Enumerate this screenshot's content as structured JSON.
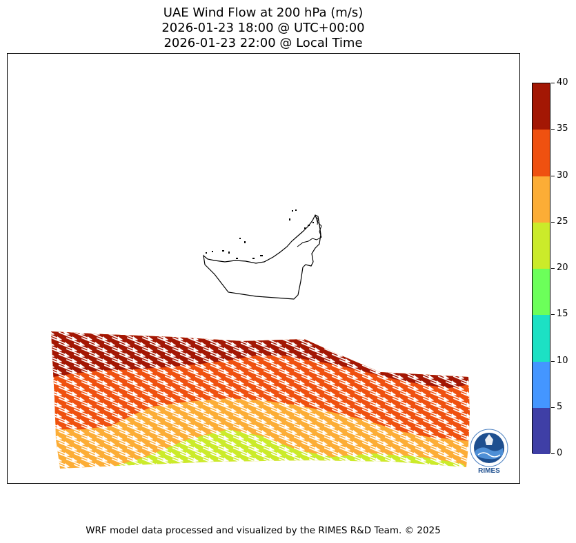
{
  "title": {
    "line1": "UAE Wind Flow at 200 hPa (m/s)",
    "line2": "2026-01-23 18:00 @ UTC+00:00",
    "line3": "2026-01-23 22:00 @ Local Time"
  },
  "colorbar": {
    "ticks": [
      "0",
      "5",
      "10",
      "15",
      "20",
      "25",
      "30",
      "35",
      "40"
    ],
    "colors": [
      "#3f3fa6",
      "#4496ff",
      "#1ce1c4",
      "#6cff5a",
      "#cbeb2a",
      "#fcad36",
      "#ef5110",
      "#a31704"
    ]
  },
  "map": {
    "field_colors": {
      "band_top": "#a31704",
      "band_35": "#ef5110",
      "band_30": "#fcad36",
      "band_25": "#cbeb2a"
    },
    "arrow_color": "#ffffff"
  },
  "logo": {
    "text": "RIMES",
    "ring_text": "Multi-Hazard Early Warning System"
  },
  "footer": "WRF model data processed and visualized by the RIMES R&D Team. © 2025"
}
